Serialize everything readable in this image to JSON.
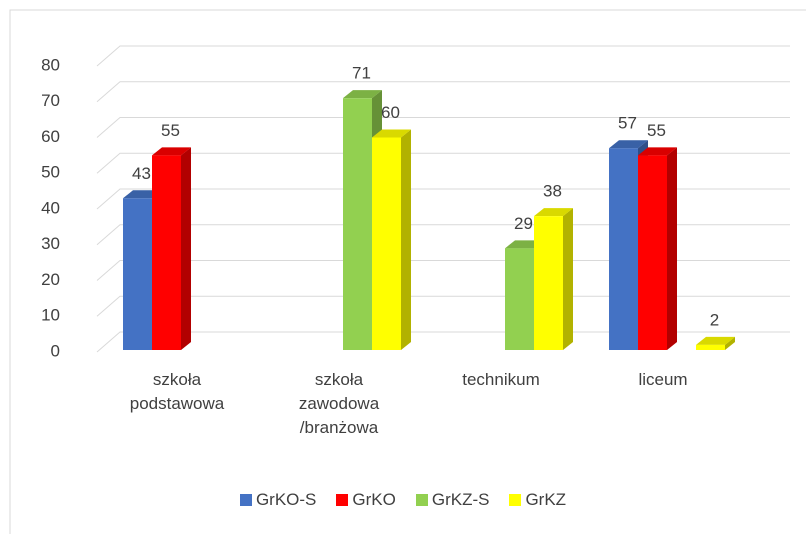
{
  "chart_data": {
    "type": "bar",
    "categories": [
      "szkoła\npodstawowa",
      "szkoła\nzawodowa\n/branżowa",
      "technikum",
      "liceum"
    ],
    "series": [
      {
        "name": "GrKO-S",
        "color": "#4472c4",
        "values": [
          43,
          null,
          null,
          57
        ]
      },
      {
        "name": "GrKO",
        "color": "#ff0000",
        "values": [
          55,
          null,
          null,
          55
        ]
      },
      {
        "name": "GrKZ-S",
        "color": "#92d050",
        "values": [
          null,
          71,
          29,
          null
        ]
      },
      {
        "name": "GrKZ",
        "color": "#ffff00",
        "values": [
          null,
          60,
          38,
          2
        ]
      }
    ],
    "ylim": [
      0,
      80
    ],
    "yticks": [
      0,
      10,
      20,
      30,
      40,
      50,
      60,
      70,
      80
    ],
    "grid": true,
    "legend": "bottom"
  }
}
